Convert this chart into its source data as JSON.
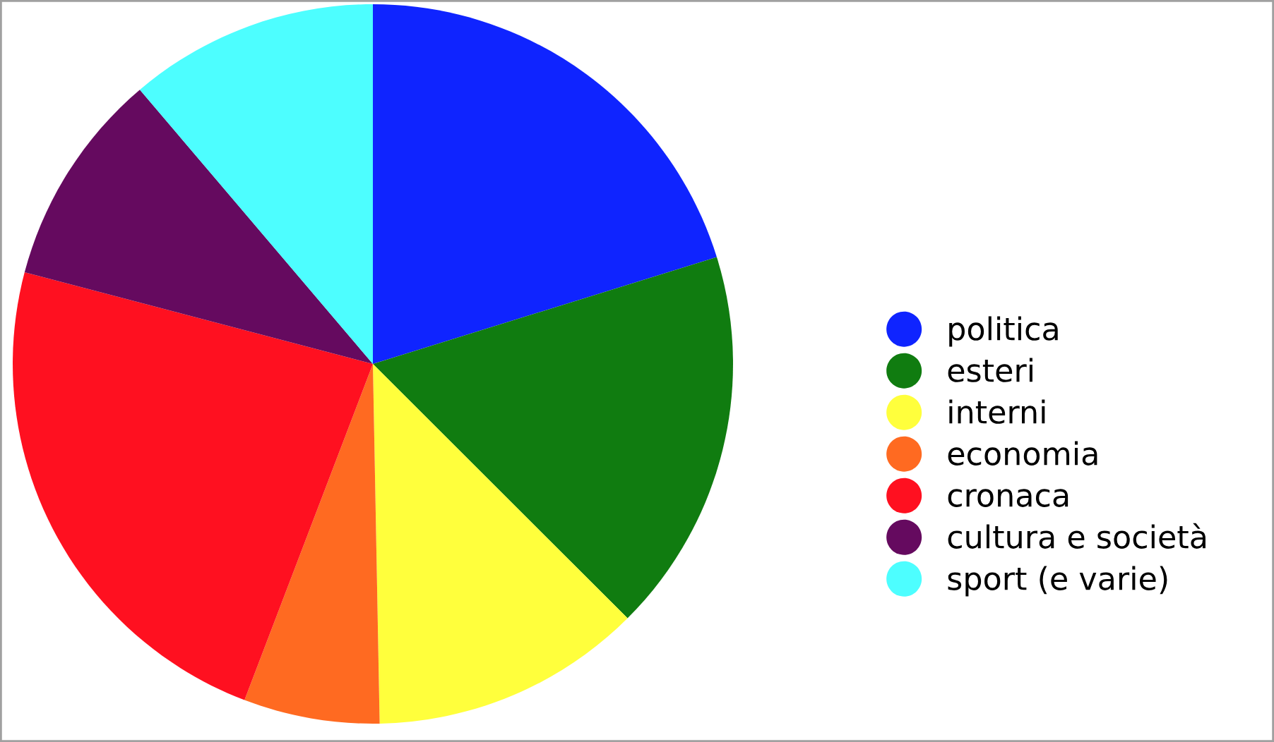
{
  "chart_data": {
    "type": "pie",
    "categories": [
      "politica",
      "esteri",
      "interni",
      "economia",
      "cronaca",
      "cultura e società",
      "sport (e varie)"
    ],
    "values": [
      20.2,
      17.3,
      12.2,
      6.1,
      23.3,
      9.7,
      11.2
    ],
    "colors": [
      "#0f24ff",
      "#107c10",
      "#ffff3c",
      "#ff6a21",
      "#ff1020",
      "#650a5f",
      "#4dfeff"
    ],
    "legend": "right"
  }
}
